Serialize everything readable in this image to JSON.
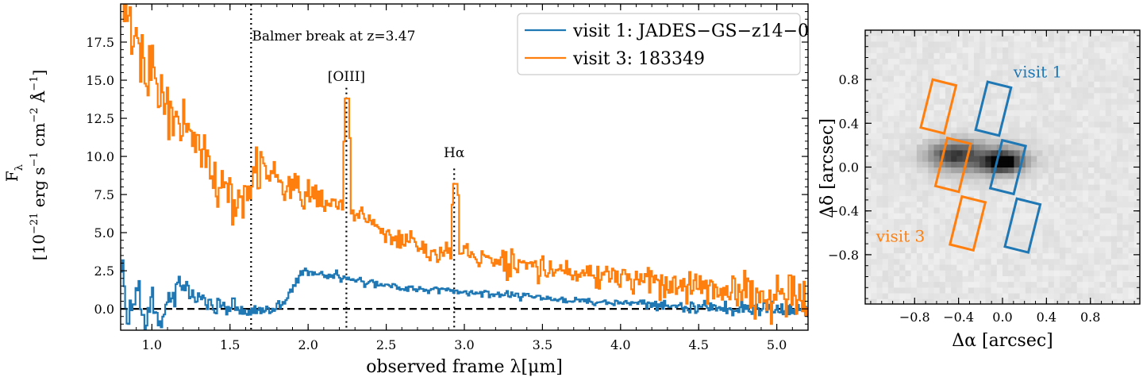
{
  "chart_data": [
    {
      "type": "line",
      "xlabel": "observed frame λ[μm]",
      "ylabel_line1": "F",
      "ylabel_sub": "λ",
      "ylabel_line2": "[10",
      "ylabel_exp1": "−21",
      "ylabel_mid": " erg s",
      "ylabel_exp2": "−1",
      "ylabel_mid2": " cm",
      "ylabel_exp3": "−2",
      "ylabel_mid3": " Å",
      "ylabel_exp4": "−1",
      "ylabel_end": "]",
      "xlim": [
        0.8,
        5.2
      ],
      "ylim": [
        -1.4,
        20.0
      ],
      "xticks": [
        1.0,
        1.5,
        2.0,
        2.5,
        3.0,
        3.5,
        4.0,
        4.5,
        5.0
      ],
      "xtick_labels": [
        "1.0",
        "1.5",
        "2.0",
        "2.5",
        "3.0",
        "3.5",
        "4.0",
        "4.5",
        "5.0"
      ],
      "yticks": [
        0.0,
        2.5,
        5.0,
        7.5,
        10.0,
        12.5,
        15.0,
        17.5
      ],
      "ytick_labels": [
        "0.0",
        "2.5",
        "5.0",
        "7.5",
        "10.0",
        "12.5",
        "15.0",
        "17.5"
      ],
      "zero_line": 0.0,
      "legend_position": "top-right",
      "series": [
        {
          "name": "visit 1: JADES−GS−z14−0",
          "color": "#1f77b4",
          "style": "steps",
          "anchors": [
            [
              0.8,
              3.2
            ],
            [
              0.84,
              -1.0
            ],
            [
              0.9,
              1.5
            ],
            [
              0.95,
              -0.8
            ],
            [
              1.0,
              0.6
            ],
            [
              1.05,
              -1.2
            ],
            [
              1.1,
              0.8
            ],
            [
              1.2,
              1.3
            ],
            [
              1.3,
              0.5
            ],
            [
              1.4,
              0.2
            ],
            [
              1.5,
              0.1
            ],
            [
              1.6,
              -0.2
            ],
            [
              1.7,
              -0.1
            ],
            [
              1.78,
              0.1
            ],
            [
              1.85,
              0.5
            ],
            [
              1.9,
              1.4
            ],
            [
              1.95,
              2.3
            ],
            [
              2.0,
              2.4
            ],
            [
              2.1,
              2.3
            ],
            [
              2.2,
              2.1
            ],
            [
              2.3,
              1.9
            ],
            [
              2.4,
              1.7
            ],
            [
              2.5,
              1.6
            ],
            [
              2.6,
              1.4
            ],
            [
              2.7,
              1.3
            ],
            [
              2.8,
              1.25
            ],
            [
              2.9,
              1.15
            ],
            [
              3.0,
              1.1
            ],
            [
              3.2,
              0.95
            ],
            [
              3.4,
              0.8
            ],
            [
              3.6,
              0.65
            ],
            [
              3.8,
              0.5
            ],
            [
              4.0,
              0.4
            ],
            [
              4.2,
              0.3
            ],
            [
              4.4,
              0.15
            ],
            [
              4.6,
              0.1
            ],
            [
              4.8,
              0.05
            ],
            [
              5.0,
              0.0
            ],
            [
              5.2,
              0.0
            ]
          ],
          "noise": [
            [
              0.8,
              1.0
            ],
            [
              1.2,
              0.7
            ],
            [
              1.6,
              0.35
            ],
            [
              2.0,
              0.25
            ],
            [
              3.0,
              0.18
            ],
            [
              4.0,
              0.18
            ],
            [
              4.8,
              0.35
            ],
            [
              5.2,
              0.5
            ]
          ]
        },
        {
          "name": "visit 3: 183349",
          "color": "#ff7f0e",
          "style": "steps",
          "anchors": [
            [
              0.8,
              20.5
            ],
            [
              0.85,
              19.0
            ],
            [
              0.9,
              17.0
            ],
            [
              0.95,
              15.5
            ],
            [
              1.0,
              14.8
            ],
            [
              1.05,
              14.0
            ],
            [
              1.1,
              13.0
            ],
            [
              1.15,
              12.5
            ],
            [
              1.2,
              11.8
            ],
            [
              1.3,
              10.5
            ],
            [
              1.4,
              8.8
            ],
            [
              1.5,
              7.2
            ],
            [
              1.6,
              7.0
            ],
            [
              1.7,
              9.5
            ],
            [
              1.8,
              8.6
            ],
            [
              1.9,
              7.6
            ],
            [
              2.0,
              7.4
            ],
            [
              2.1,
              7.0
            ],
            [
              2.2,
              6.8
            ],
            [
              2.3,
              6.3
            ],
            [
              2.4,
              5.6
            ],
            [
              2.5,
              4.8
            ],
            [
              2.6,
              4.5
            ],
            [
              2.7,
              4.2
            ],
            [
              2.8,
              3.8
            ],
            [
              2.9,
              3.7
            ],
            [
              3.0,
              3.5
            ],
            [
              3.2,
              3.1
            ],
            [
              3.4,
              2.8
            ],
            [
              3.6,
              2.5
            ],
            [
              3.8,
              2.2
            ],
            [
              4.0,
              2.0
            ],
            [
              4.2,
              1.8
            ],
            [
              4.4,
              1.5
            ],
            [
              4.6,
              1.3
            ],
            [
              4.8,
              1.1
            ],
            [
              5.0,
              0.9
            ],
            [
              5.2,
              0.8
            ]
          ],
          "noise": [
            [
              0.8,
              2.0
            ],
            [
              1.2,
              1.4
            ],
            [
              1.6,
              1.2
            ],
            [
              2.0,
              0.7
            ],
            [
              2.5,
              0.5
            ],
            [
              3.0,
              0.55
            ],
            [
              4.0,
              0.75
            ],
            [
              4.6,
              0.85
            ],
            [
              5.2,
              1.2
            ]
          ],
          "emission_lines": [
            [
              2.245,
              13.8
            ],
            [
              2.94,
              8.2
            ]
          ]
        }
      ],
      "vlines": [
        {
          "x": 1.635,
          "y_top": 20.0,
          "label": "Balmer break at z=3.47"
        },
        {
          "x": 2.245,
          "y_top": 14.5,
          "label": "[OIII]"
        },
        {
          "x": 2.935,
          "y_top": 9.2,
          "label": "Hα"
        }
      ]
    },
    {
      "type": "heatmap",
      "xlabel": "Δα [arcsec]",
      "ylabel": "Δδ [arcsec]",
      "xlim": [
        -1.25,
        1.25
      ],
      "ylim": [
        -1.25,
        1.25
      ],
      "xticks": [
        -0.8,
        -0.4,
        0.0,
        0.4,
        0.8
      ],
      "xtick_labels": [
        "−0.8",
        "−0.4",
        "0.0",
        "0.4",
        "0.8"
      ],
      "yticks": [
        0.8,
        0.4,
        0.0,
        -0.4,
        -0.8
      ],
      "ytick_labels": [
        "0.8",
        "0.4",
        "0.0",
        "−0.4",
        "−0.8"
      ],
      "colormap": "gray_r",
      "source": {
        "center": [
          0.0,
          0.05
        ],
        "main_blob": [
          0.0,
          0.05
        ],
        "secondary_blob": [
          -0.45,
          0.12
        ]
      },
      "shutters": [
        {
          "visit": "visit 1",
          "color": "#1f77b4",
          "center": [
            0.05,
            0.0
          ],
          "width": 0.22,
          "height": 0.45,
          "gap": 0.1,
          "angle_deg": 14
        },
        {
          "visit": "visit 3",
          "color": "#ff7f0e",
          "center": [
            -0.45,
            0.02
          ],
          "width": 0.22,
          "height": 0.45,
          "gap": 0.1,
          "angle_deg": 14
        }
      ],
      "annotations": [
        {
          "text": "visit 1",
          "color": "#1f77b4",
          "at": [
            0.1,
            0.82
          ]
        },
        {
          "text": "visit 3",
          "color": "#ff7f0e",
          "at": [
            -1.15,
            -0.68
          ]
        }
      ]
    }
  ]
}
